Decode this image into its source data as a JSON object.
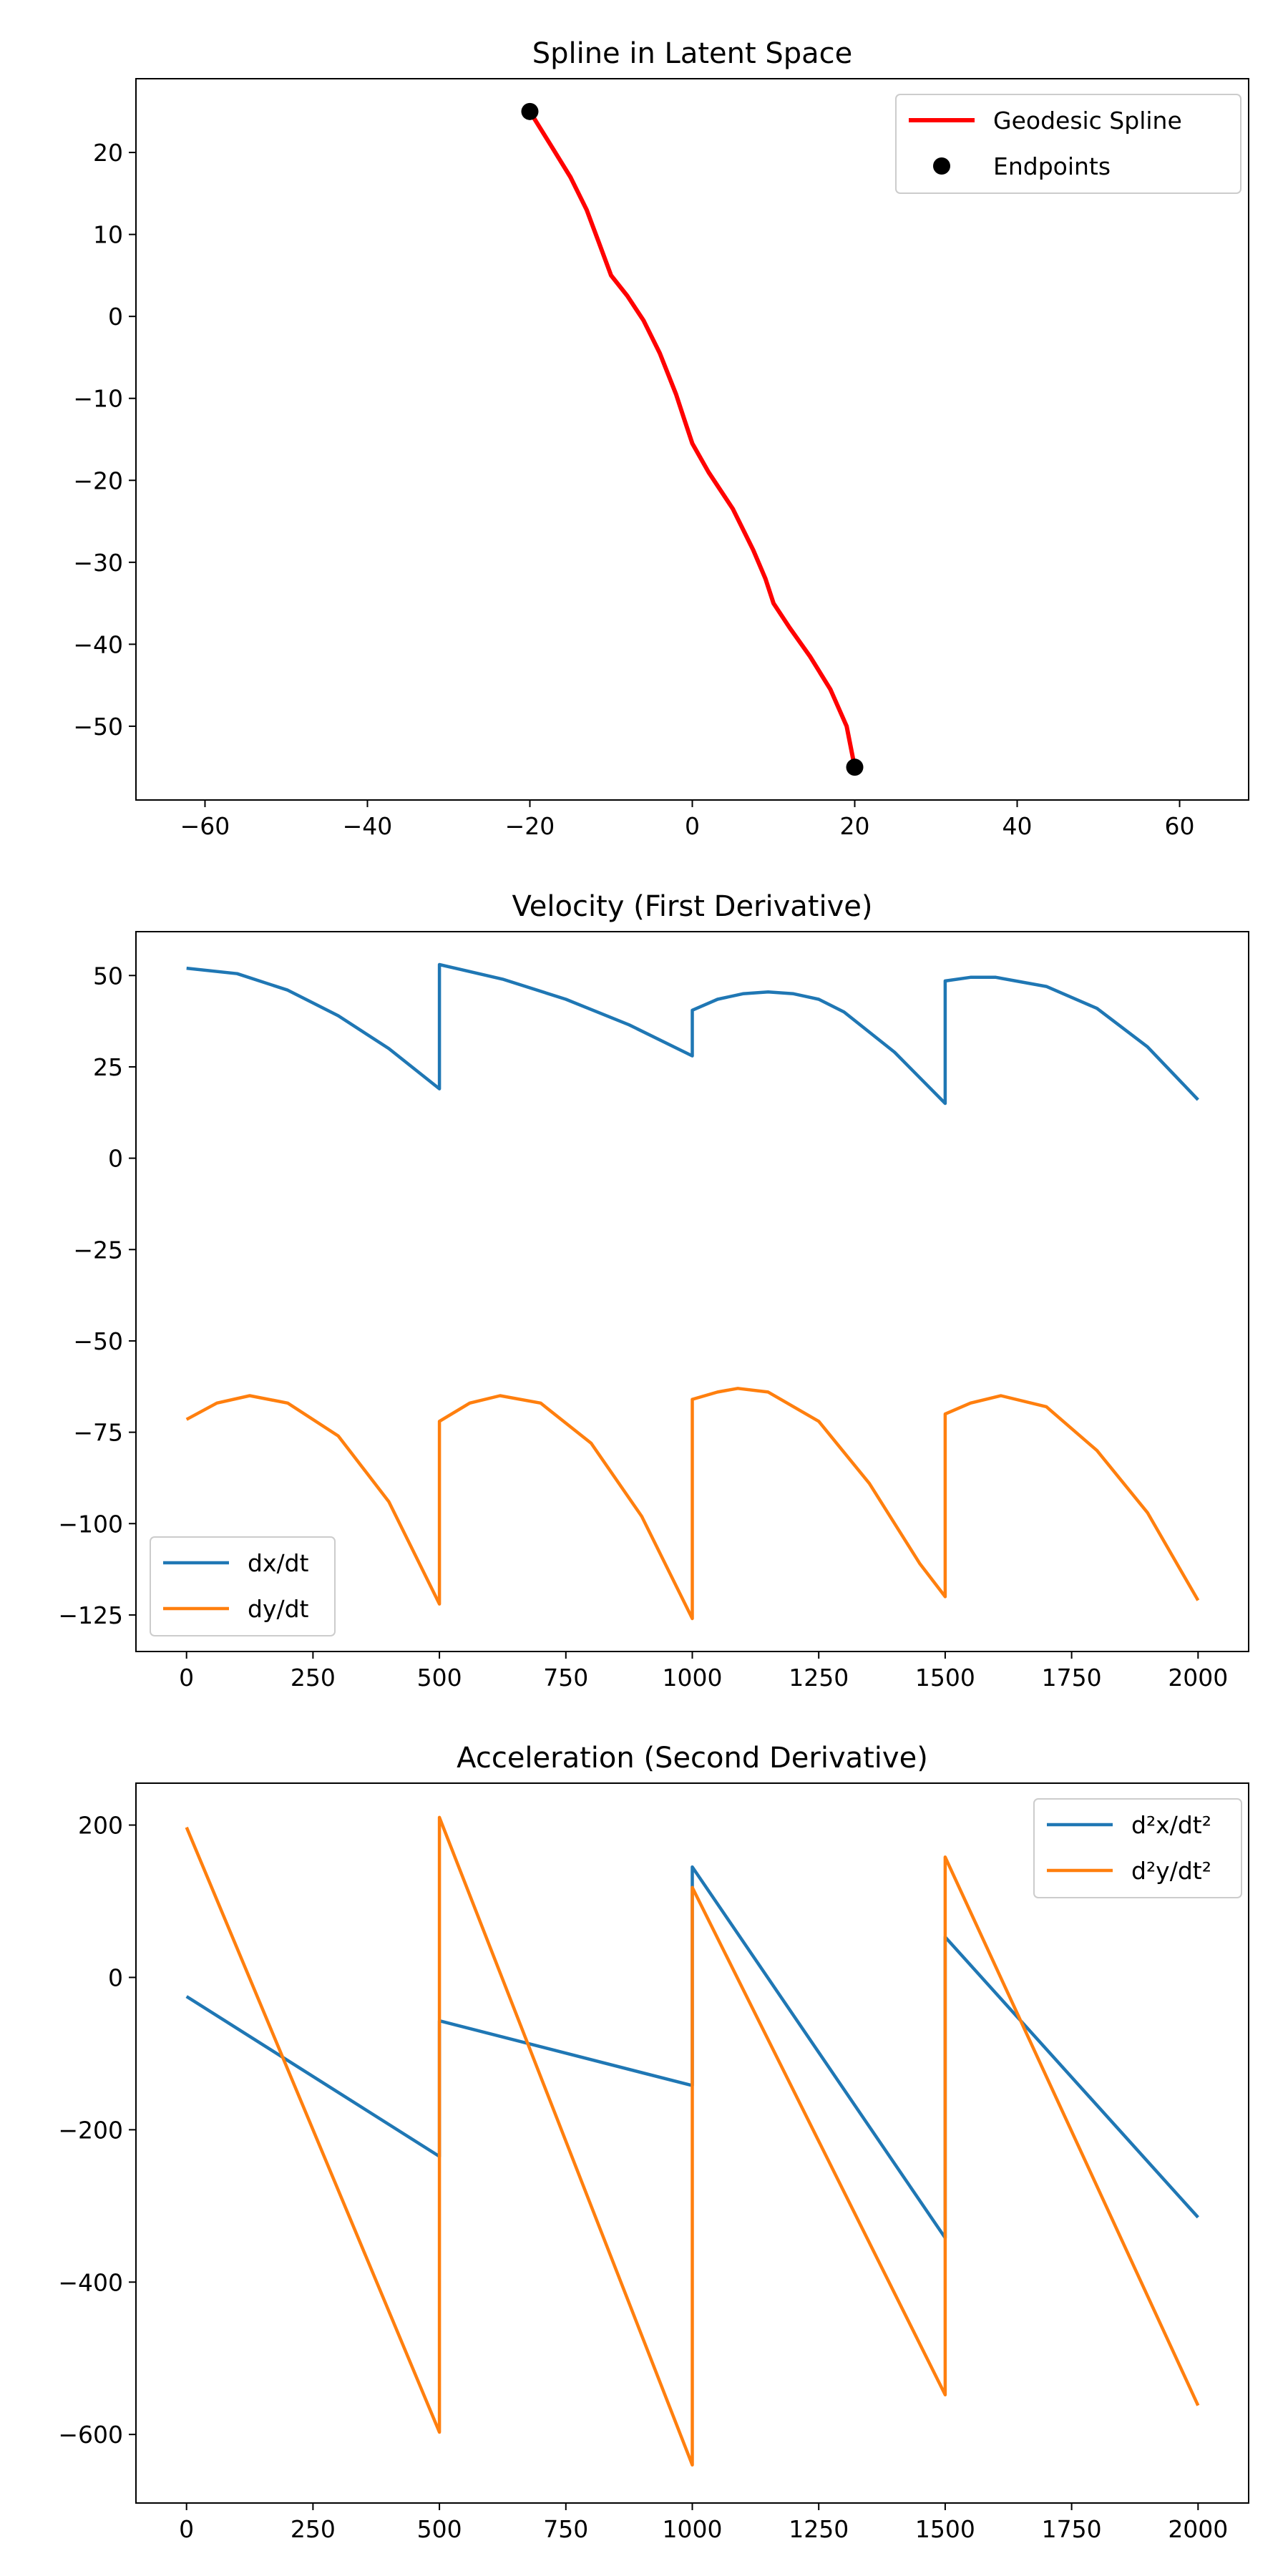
{
  "chart_data": [
    {
      "type": "line",
      "title": "Spline in Latent Space",
      "xlabel": "",
      "ylabel": "",
      "xlim": [
        -68.5,
        68.5
      ],
      "ylim": [
        -59,
        29
      ],
      "xticks": [
        -60,
        -40,
        -20,
        0,
        20,
        40,
        60
      ],
      "yticks": [
        -50,
        -40,
        -30,
        -20,
        -10,
        0,
        10,
        20
      ],
      "grid": false,
      "legend": "top-right",
      "series": [
        {
          "name": "Geodesic Spline",
          "kind": "line",
          "color": "#ff0000",
          "x": [
            -20,
            -17.5,
            -15,
            -13,
            -11.5,
            -10,
            -8,
            -6,
            -4,
            -2,
            -1,
            0,
            2,
            5,
            7.5,
            9,
            10,
            12,
            14.5,
            17,
            19,
            20
          ],
          "y": [
            25,
            21,
            17,
            13,
            9,
            5,
            2.5,
            -0.5,
            -4.5,
            -9.5,
            -12.5,
            -15.5,
            -19,
            -23.5,
            -28.5,
            -32,
            -35,
            -38,
            -41.5,
            -45.5,
            -50,
            -55
          ]
        },
        {
          "name": "Endpoints",
          "kind": "scatter",
          "color": "#000000",
          "x": [
            -20,
            20
          ],
          "y": [
            25,
            -55
          ]
        }
      ]
    },
    {
      "type": "line",
      "title": "Velocity (First Derivative)",
      "xlabel": "",
      "ylabel": "",
      "xlim": [
        -100,
        2100
      ],
      "ylim": [
        -135,
        62
      ],
      "xticks": [
        0,
        250,
        500,
        750,
        1000,
        1250,
        1500,
        1750,
        2000
      ],
      "yticks": [
        -125,
        -100,
        -75,
        -50,
        -25,
        0,
        25,
        50
      ],
      "grid": false,
      "legend": "bottom-left",
      "series": [
        {
          "name": "dx/dt",
          "color": "#1f77b4",
          "x": [
            0,
            100,
            200,
            300,
            400,
            500,
            500,
            625,
            750,
            875,
            1000,
            1000,
            1050,
            1100,
            1150,
            1200,
            1250,
            1300,
            1400,
            1500,
            1500,
            1550,
            1600,
            1700,
            1800,
            1900,
            2000
          ],
          "y": [
            52,
            50.5,
            46,
            39,
            30,
            19,
            53,
            49,
            43.5,
            36.5,
            28,
            40.5,
            43.5,
            45,
            45.5,
            45,
            43.5,
            40,
            29,
            15,
            48.5,
            49.5,
            49.5,
            47,
            41,
            30.5,
            16
          ]
        },
        {
          "name": "dy/dt",
          "color": "#ff7f0e",
          "x": [
            0,
            60,
            125,
            200,
            300,
            400,
            500,
            500,
            560,
            620,
            700,
            800,
            900,
            1000,
            1000,
            1050,
            1090,
            1150,
            1250,
            1350,
            1450,
            1500,
            1500,
            1550,
            1610,
            1700,
            1800,
            1900,
            2000
          ],
          "y": [
            -71.5,
            -67,
            -65,
            -67,
            -76,
            -94,
            -122,
            -72,
            -67,
            -65,
            -67,
            -78,
            -98,
            -126,
            -66,
            -64,
            -63,
            -64,
            -72,
            -89,
            -111,
            -120,
            -70,
            -67,
            -65,
            -68,
            -80,
            -97,
            -121
          ]
        }
      ]
    },
    {
      "type": "line",
      "title": "Acceleration (Second Derivative)",
      "xlabel": "",
      "ylabel": "",
      "xlim": [
        -100,
        2100
      ],
      "ylim": [
        -690,
        255
      ],
      "xticks": [
        0,
        250,
        500,
        750,
        1000,
        1250,
        1500,
        1750,
        2000
      ],
      "yticks": [
        -600,
        -400,
        -200,
        0,
        200
      ],
      "grid": false,
      "legend": "top-right",
      "series": [
        {
          "name": "d²x/dt²",
          "color": "#1f77b4",
          "x": [
            0,
            500,
            500,
            1000,
            1000,
            1500,
            1500,
            2000
          ],
          "y": [
            -25,
            -235,
            -57,
            -142,
            145,
            -342,
            53,
            -315
          ]
        },
        {
          "name": "d²y/dt²",
          "color": "#ff7f0e",
          "x": [
            0,
            500,
            500,
            1000,
            1000,
            1500,
            1500,
            2000
          ],
          "y": [
            197,
            -597,
            210,
            -640,
            118,
            -548,
            158,
            -562
          ]
        }
      ]
    }
  ]
}
